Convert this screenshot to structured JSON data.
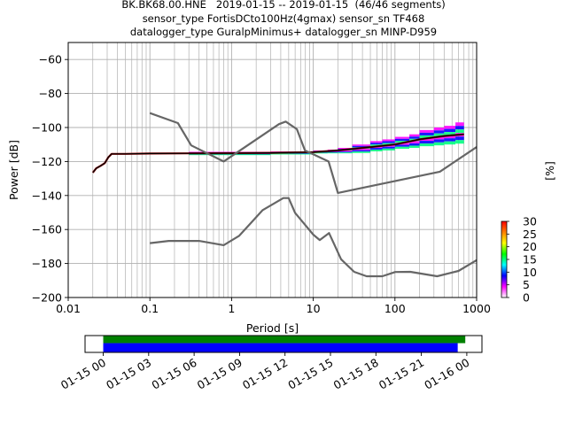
{
  "header": {
    "title_line1": "BK.BK68.00.HNE   2019-01-15 -- 2019-01-15  (46/46 segments)",
    "title_line2": "sensor_type FortisDCto100Hz(4gmax) sensor_sn TF468",
    "title_line3": "datalogger_type GuralpMinimus+ datalogger_sn MINP-D959"
  },
  "colors": {
    "model_curve": "#666666",
    "mean_curve": "#000000",
    "mode_curve": "#8b0000",
    "coverage_top": "#008000",
    "coverage_bottom": "#0000ff",
    "grid": "#b0b0b0"
  },
  "chart_data": [
    {
      "type": "heatmap",
      "xlabel": "Period [s]",
      "ylabel": "Power [dB]",
      "x_scale": "log",
      "xlim": [
        0.01,
        1000
      ],
      "ylim": [
        -200,
        -50
      ],
      "x_ticks": [
        {
          "value": 0.01,
          "label": "0.01"
        },
        {
          "value": 0.1,
          "label": "0.1"
        },
        {
          "value": 1,
          "label": "1"
        },
        {
          "value": 10,
          "label": "10"
        },
        {
          "value": 100,
          "label": "100"
        },
        {
          "value": 1000,
          "label": "1000"
        }
      ],
      "y_ticks": [
        {
          "value": -60,
          "label": "−60"
        },
        {
          "value": -80,
          "label": "−80"
        },
        {
          "value": -100,
          "label": "−100"
        },
        {
          "value": -120,
          "label": "−120"
        },
        {
          "value": -140,
          "label": "−140"
        },
        {
          "value": -160,
          "label": "−160"
        },
        {
          "value": -180,
          "label": "−180"
        },
        {
          "value": -200,
          "label": "−200"
        }
      ],
      "grid": true,
      "colorbar": {
        "label": "[%]",
        "min": 0,
        "max": 30,
        "ticks": [
          "0",
          "5",
          "10",
          "15",
          "20",
          "25",
          "30"
        ],
        "colors": [
          "#ffffff",
          "#ff00ff",
          "#0000ff",
          "#00ffff",
          "#00ff00",
          "#ffff00",
          "#ff8000",
          "#ff0000"
        ]
      },
      "noise_model_high": {
        "x": [
          0.1,
          0.22,
          0.32,
          0.8,
          3.8,
          4.6,
          6.3,
          7.9,
          15.4,
          20,
          354.8,
          1000
        ],
        "y": [
          -91.5,
          -97.4,
          -110.5,
          -120.0,
          -98.0,
          -96.5,
          -101.0,
          -113.5,
          -120.0,
          -138.5,
          -126.0,
          -111.5
        ]
      },
      "noise_model_low": {
        "x": [
          0.1,
          0.17,
          0.4,
          0.8,
          1.24,
          2.4,
          4.3,
          5.0,
          6.0,
          10.0,
          12.0,
          15.6,
          21.9,
          31.6,
          45.0,
          70.0,
          101.0,
          154.0,
          328.0,
          600.0,
          1000.0
        ],
        "y": [
          -168.0,
          -166.7,
          -166.7,
          -169.2,
          -163.7,
          -148.6,
          -141.5,
          -141.5,
          -150.2,
          -163.0,
          -166.2,
          -162.1,
          -177.5,
          -184.9,
          -187.5,
          -187.5,
          -185.0,
          -184.9,
          -187.5,
          -184.4,
          -178.0
        ]
      },
      "mean_curve": {
        "x": [
          0.02,
          0.022,
          0.025,
          0.028,
          0.031,
          0.034,
          0.05,
          0.1,
          0.3,
          1,
          3,
          10,
          20,
          50,
          100,
          200,
          400,
          700
        ],
        "y": [
          -126.5,
          -124.0,
          -122.5,
          -121.0,
          -117.5,
          -115.5,
          -115.5,
          -115.3,
          -115.2,
          -115.1,
          -114.9,
          -114.5,
          -113.5,
          -111.5,
          -110.0,
          -107.0,
          -105.0,
          -104.0
        ]
      },
      "psd_spread": {
        "x": [
          0.3,
          1,
          3,
          10,
          15,
          20,
          30,
          50,
          70,
          100,
          150,
          200,
          300,
          400,
          550,
          700
        ],
        "y_max": [
          -114.3,
          -114.3,
          -114.1,
          -113.5,
          -113.0,
          -112.0,
          -110.0,
          -108.0,
          -107.0,
          -105.5,
          -104.0,
          -101.5,
          -100.0,
          -99.0,
          -97.0,
          -96.0
        ],
        "y_min": [
          -116.0,
          -116.0,
          -115.6,
          -115.0,
          -115.0,
          -115.2,
          -115.0,
          -114.0,
          -113.5,
          -112.5,
          -112.0,
          -111.0,
          -110.5,
          -110.0,
          -109.5,
          -109.0
        ]
      }
    },
    {
      "type": "bar",
      "description_of_axis": "time coverage",
      "x_ticks": [
        "01-15 00",
        "01-15 03",
        "01-15 06",
        "01-15 09",
        "01-15 12",
        "01-15 15",
        "01-15 18",
        "01-15 21",
        "01-16 00"
      ],
      "xlim_hours": [
        -1.2,
        25.0
      ],
      "series": [
        {
          "start_hour": 0.0,
          "end_hour": 23.9,
          "row": "top"
        },
        {
          "start_hour": 0.0,
          "end_hour": 23.4,
          "row": "bottom"
        }
      ]
    }
  ]
}
